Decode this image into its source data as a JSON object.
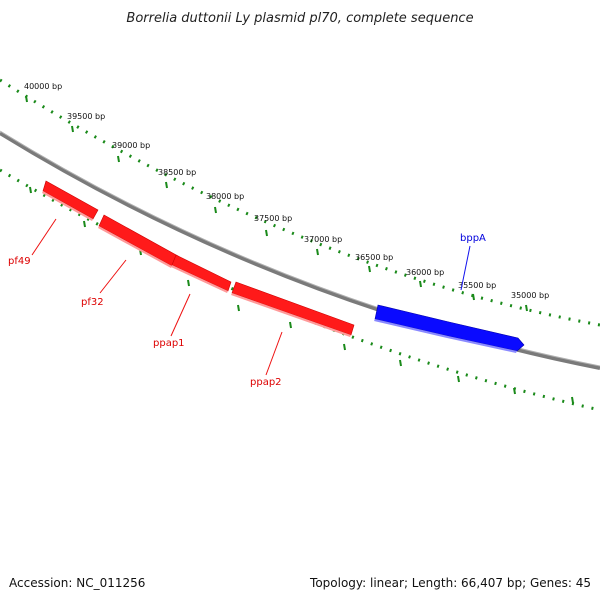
{
  "title": "Borrelia duttonii Ly plasmid pl70, complete sequence",
  "colors": {
    "backbone": "#808080",
    "ticks": "#1a8a1a",
    "forward_gene": "#ff0000",
    "reverse_gene": "#0000ff"
  },
  "ticks": [
    {
      "text": "40000 bp"
    },
    {
      "text": "39500 bp"
    },
    {
      "text": "39000 bp"
    },
    {
      "text": "38500 bp"
    },
    {
      "text": "38000 bp"
    },
    {
      "text": "37500 bp"
    },
    {
      "text": "37000 bp"
    },
    {
      "text": "36500 bp"
    },
    {
      "text": "36000 bp"
    },
    {
      "text": "35500 bp"
    },
    {
      "text": "35000 bp"
    }
  ],
  "genes": [
    {
      "name": "pf49",
      "strand": "forward"
    },
    {
      "name": "pf32",
      "strand": "forward"
    },
    {
      "name": "ppap1",
      "strand": "forward"
    },
    {
      "name": "ppap2",
      "strand": "forward"
    },
    {
      "name": "bppA",
      "strand": "reverse"
    }
  ],
  "footer": {
    "accession": "Accession: NC_011256",
    "summary": "Topology: linear; Length: 66,407 bp; Genes: 45"
  }
}
